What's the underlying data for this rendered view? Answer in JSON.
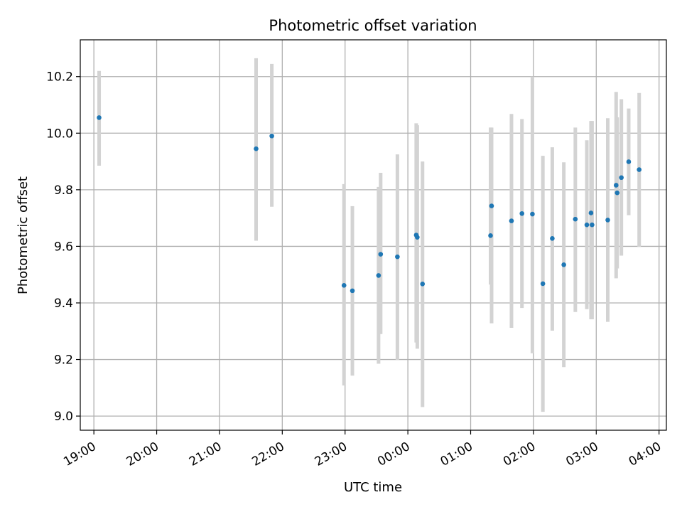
{
  "chart_data": {
    "type": "scatter",
    "title": "Photometric offset variation",
    "xlabel": "UTC time",
    "ylabel": "Photometric offset",
    "grid": true,
    "x_ticks": [
      "19:00",
      "20:00",
      "21:00",
      "22:00",
      "23:00",
      "00:00",
      "01:00",
      "02:00",
      "03:00",
      "04:00"
    ],
    "xlim": [
      "18:47",
      "04:07"
    ],
    "ylim": [
      8.95,
      10.33
    ],
    "y_ticks": [
      9.0,
      9.2,
      9.4,
      9.6,
      9.8,
      10.0,
      10.2
    ],
    "colors": {
      "point": "#1f77b4",
      "errorbar": "#d3d3d3",
      "grid": "#b0b0b0"
    },
    "points": [
      {
        "x": "19:05",
        "y": 10.055,
        "low": 9.885,
        "high": 10.22
      },
      {
        "x": "21:35",
        "y": 9.945,
        "low": 9.62,
        "high": 10.265
      },
      {
        "x": "21:50",
        "y": 9.99,
        "low": 9.74,
        "high": 10.245
      },
      {
        "x": "22:59",
        "y": 9.462,
        "low": 9.108,
        "high": 9.82
      },
      {
        "x": "23:07",
        "y": 9.443,
        "low": 9.143,
        "high": 9.742
      },
      {
        "x": "23:32",
        "y": 9.497,
        "low": 9.185,
        "high": 9.81
      },
      {
        "x": "23:34",
        "y": 9.572,
        "low": 9.29,
        "high": 9.86
      },
      {
        "x": "23:50",
        "y": 9.563,
        "low": 9.198,
        "high": 9.925
      },
      {
        "x": "00:08",
        "y": 9.64,
        "low": 9.26,
        "high": 10.035
      },
      {
        "x": "00:09",
        "y": 9.632,
        "low": 9.238,
        "high": 10.028
      },
      {
        "x": "00:14",
        "y": 9.467,
        "low": 9.032,
        "high": 9.9
      },
      {
        "x": "01:19",
        "y": 9.638,
        "low": 9.465,
        "high": 10.02
      },
      {
        "x": "01:20",
        "y": 9.743,
        "low": 9.328,
        "high": 10.02
      },
      {
        "x": "01:39",
        "y": 9.69,
        "low": 9.312,
        "high": 10.068
      },
      {
        "x": "01:49",
        "y": 9.716,
        "low": 9.382,
        "high": 10.05
      },
      {
        "x": "01:59",
        "y": 9.714,
        "low": 9.222,
        "high": 10.2
      },
      {
        "x": "02:09",
        "y": 9.468,
        "low": 9.015,
        "high": 9.92
      },
      {
        "x": "02:18",
        "y": 9.628,
        "low": 9.302,
        "high": 9.95
      },
      {
        "x": "02:29",
        "y": 9.535,
        "low": 9.173,
        "high": 9.897
      },
      {
        "x": "02:40",
        "y": 9.696,
        "low": 9.368,
        "high": 10.02
      },
      {
        "x": "02:51",
        "y": 9.676,
        "low": 9.378,
        "high": 9.975
      },
      {
        "x": "02:55",
        "y": 9.718,
        "low": 9.342,
        "high": 10.043
      },
      {
        "x": "02:56",
        "y": 9.676,
        "low": 9.342,
        "high": 10.043
      },
      {
        "x": "03:11",
        "y": 9.693,
        "low": 9.333,
        "high": 10.053
      },
      {
        "x": "03:19",
        "y": 9.816,
        "low": 9.487,
        "high": 10.146
      },
      {
        "x": "03:20",
        "y": 9.789,
        "low": 9.522,
        "high": 10.056
      },
      {
        "x": "03:24",
        "y": 9.843,
        "low": 9.567,
        "high": 10.12
      },
      {
        "x": "03:31",
        "y": 9.899,
        "low": 9.71,
        "high": 10.087
      },
      {
        "x": "03:41",
        "y": 9.871,
        "low": 9.598,
        "high": 10.142
      }
    ]
  }
}
